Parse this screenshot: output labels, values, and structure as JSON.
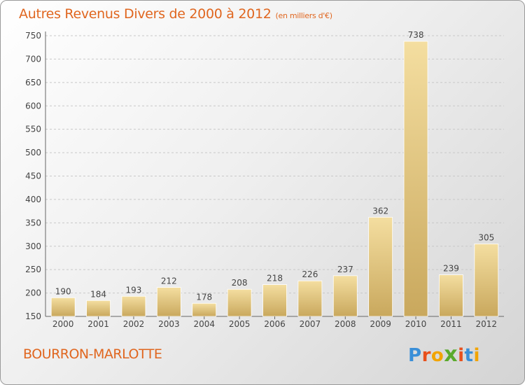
{
  "title": "Autres Revenus Divers de 2000 à 2012",
  "title_unit": "(en milliers d'€)",
  "location": "BOURRON-MARLOTTE",
  "logo": {
    "letters": [
      "P",
      "r",
      "o",
      "x",
      "i",
      "t",
      "i"
    ],
    "colors": [
      "#3a8fd8",
      "#e8501c",
      "#f2a400",
      "#5aaa2c",
      "#e8501c",
      "#3a8fd8",
      "#f2a400"
    ]
  },
  "colors": {
    "bar_light": "#f4dea0",
    "bar_dark": "#c9a85d",
    "title": "#e0661f",
    "grid": "#c8c8c8"
  },
  "chart_data": {
    "type": "bar",
    "title": "Autres Revenus Divers de 2000 à 2012",
    "categories": [
      "2000",
      "2001",
      "2002",
      "2003",
      "2004",
      "2005",
      "2006",
      "2007",
      "2008",
      "2009",
      "2010",
      "2011",
      "2012"
    ],
    "values": [
      190,
      184,
      193,
      212,
      178,
      208,
      218,
      226,
      237,
      362,
      738,
      239,
      305
    ],
    "ylim": [
      150,
      750
    ],
    "yticks": [
      150,
      200,
      250,
      300,
      350,
      400,
      450,
      500,
      550,
      600,
      650,
      700,
      750
    ],
    "grid": true,
    "legend": "none"
  }
}
